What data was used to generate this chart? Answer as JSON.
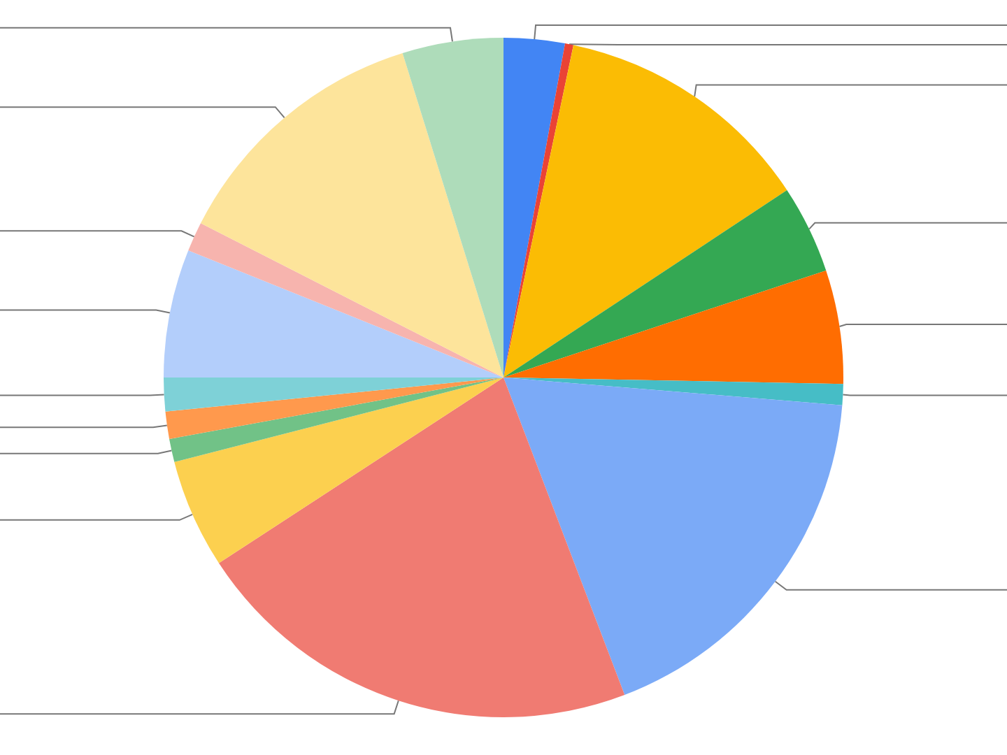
{
  "chart_data": {
    "type": "pie",
    "categories": [
      null,
      null,
      null,
      null,
      null,
      null,
      null,
      null,
      null,
      null,
      null,
      null,
      null,
      null,
      null,
      null
    ],
    "values": [
      2.9,
      0.4,
      12.4,
      4.2,
      5.4,
      1.0,
      17.9,
      21.6,
      5.2,
      1.1,
      1.3,
      1.6,
      6.1,
      1.4,
      12.7,
      4.8
    ],
    "colors": [
      "#4285f4",
      "#ea4335",
      "#fbbc04",
      "#34a853",
      "#ff6d01",
      "#46bdc6",
      "#7baaf7",
      "#f07b72",
      "#fcd04f",
      "#71c287",
      "#ff994d",
      "#7ed1d7",
      "#b3cefb",
      "#f7b4ae",
      "#fde49b",
      "#aedcba"
    ]
  }
}
